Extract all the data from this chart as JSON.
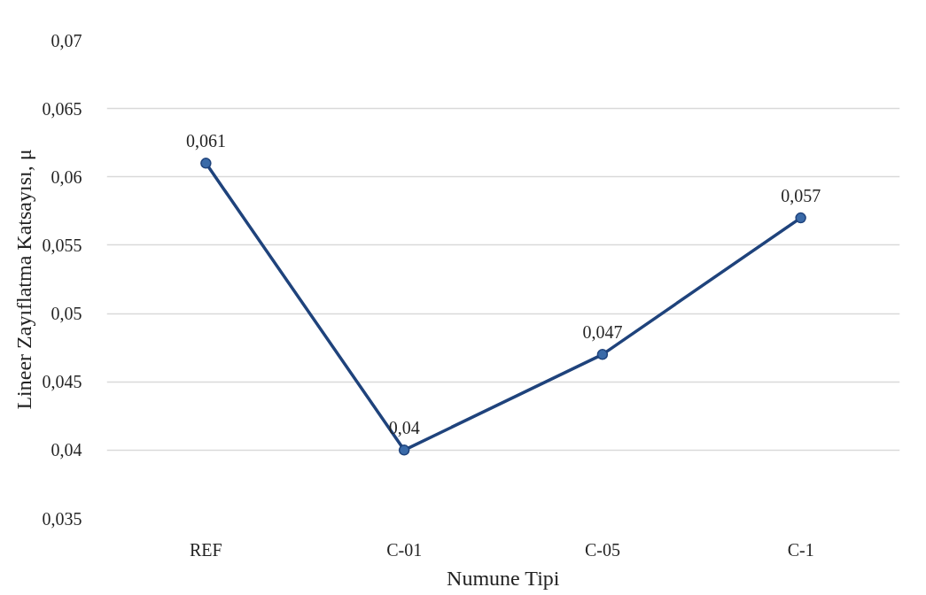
{
  "chart_data": {
    "type": "line",
    "xlabel": "Numune Tipi",
    "ylabel": "Lineer Zayıflatma Katsayısı, μ",
    "categories": [
      "REF",
      "C-01",
      "C-05",
      "C-1"
    ],
    "series": [
      {
        "color": "#1f437c",
        "values": [
          0.061,
          0.04,
          0.047,
          0.057
        ],
        "value_labels": [
          "0,061",
          "0,04",
          "0,047",
          "0,057"
        ]
      }
    ],
    "ylim": [
      0.035,
      0.07
    ],
    "yticks": [
      {
        "value": 0.035,
        "label": "0,035"
      },
      {
        "value": 0.04,
        "label": "0,04"
      },
      {
        "value": 0.045,
        "label": "0,045"
      },
      {
        "value": 0.05,
        "label": "0,05"
      },
      {
        "value": 0.055,
        "label": "0,055"
      },
      {
        "value": 0.06,
        "label": "0,06"
      },
      {
        "value": 0.065,
        "label": "0,065"
      },
      {
        "value": 0.07,
        "label": "0,07"
      }
    ],
    "grid": "y",
    "marker": "circle",
    "line_style": "solid"
  }
}
